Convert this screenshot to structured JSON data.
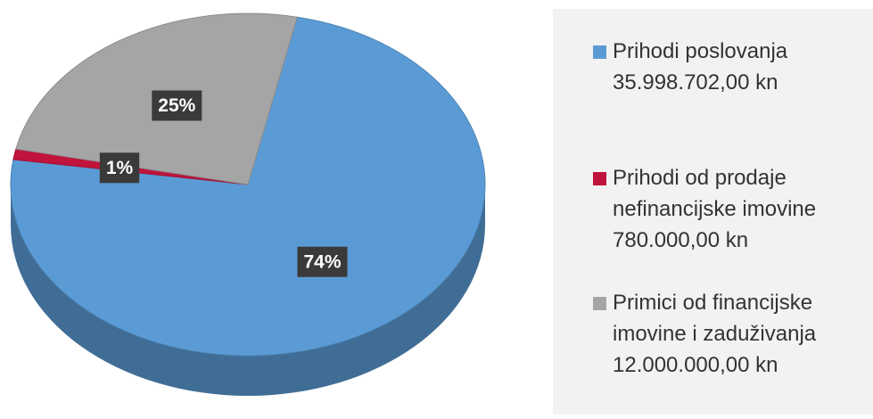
{
  "chart_data": {
    "type": "pie",
    "categories": [
      "Prihodi poslovanja\n35.998.702,00 kn",
      "Prihodi od prodaje\nnefinancijske imovine\n780.000,00 kn",
      "Primici od financijske\nimovine i zaduživanja\n12.000.000,00 kn"
    ],
    "values": [
      74,
      1,
      25
    ],
    "value_labels": [
      "74%",
      "1%",
      "25%"
    ],
    "colors": [
      "#5b9bd5",
      "#c0143c",
      "#a5a5a5"
    ],
    "legend": "right"
  }
}
